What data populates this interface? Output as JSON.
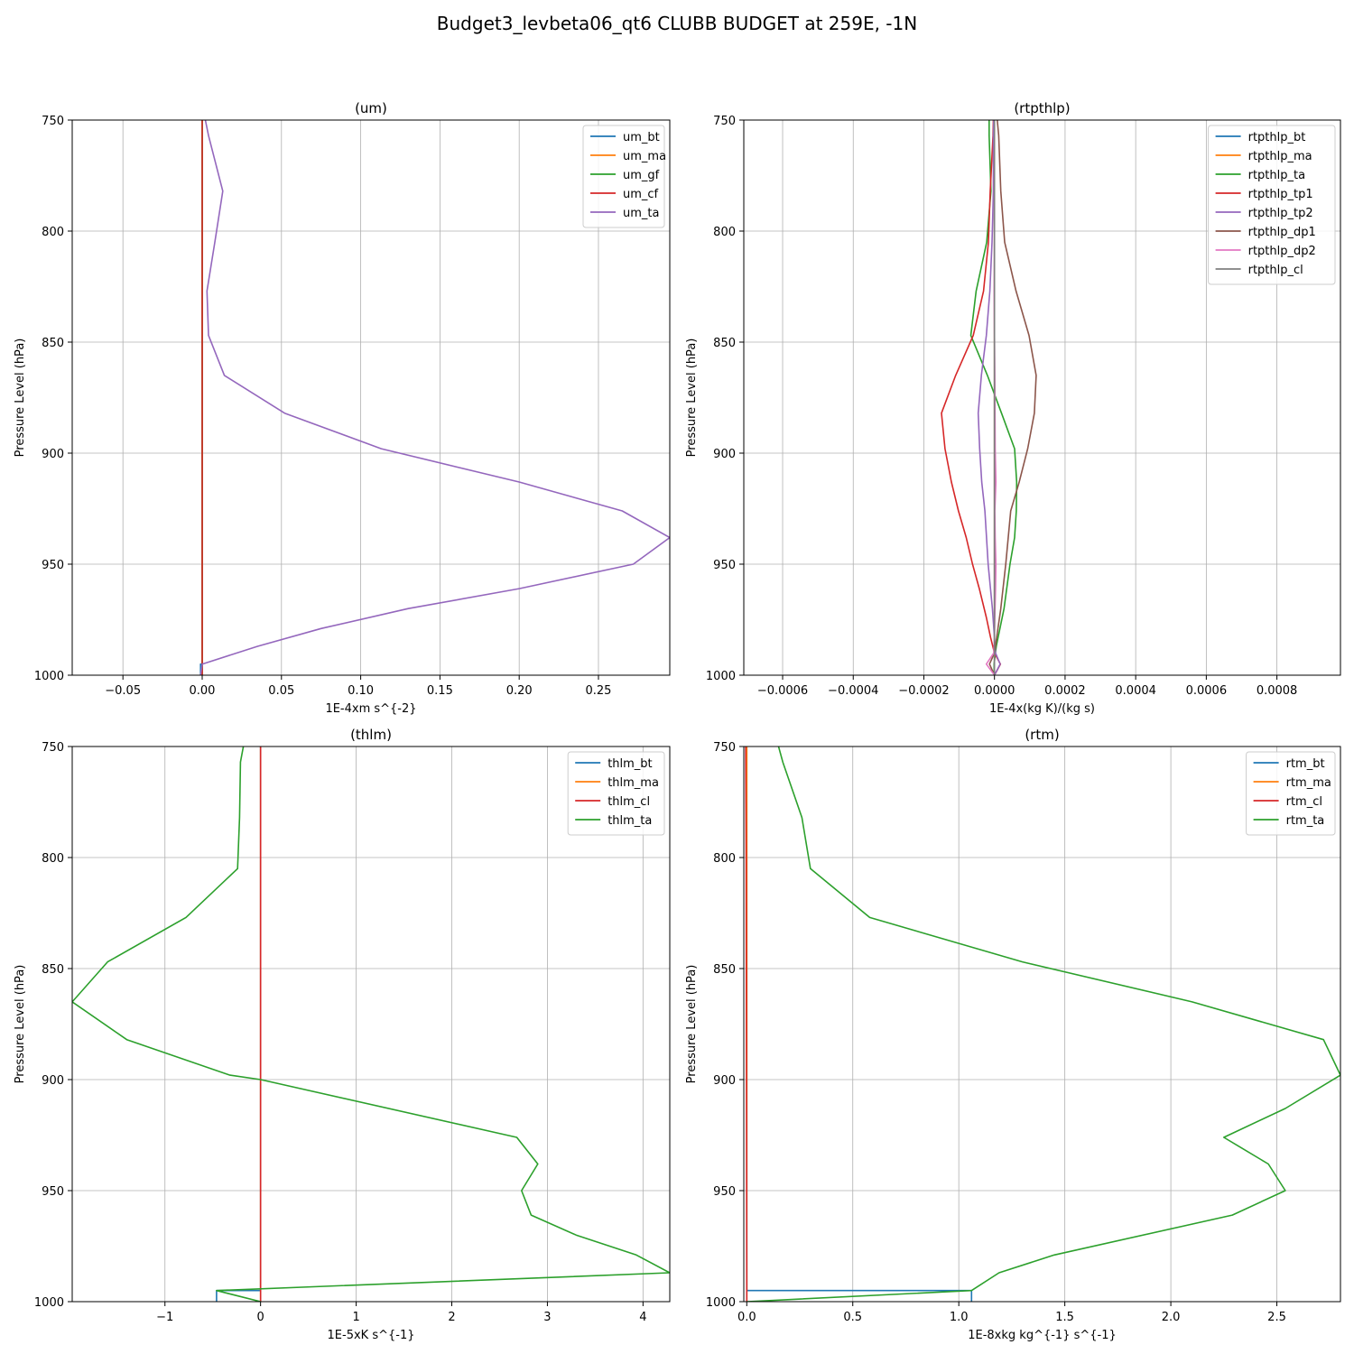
{
  "figure": {
    "title": "Budget3_levbeta06_qt6 CLUBB BUDGET at 259E, -1N"
  },
  "colors": {
    "C0": "#1f77b4",
    "C1": "#ff7f0e",
    "C2": "#2ca02c",
    "C3": "#d62728",
    "C4": "#9467bd",
    "C5": "#8c564b",
    "C6": "#e377c2",
    "C7": "#7f7f7f",
    "grid": "#b0b0b0"
  },
  "chart_data": [
    {
      "type": "line",
      "title": "(um)",
      "xlabel": "1E-4xm s^{-2}",
      "ylabel": "Pressure Level (hPa)",
      "xlim": [
        -0.082,
        0.295
      ],
      "ylim": [
        1000,
        750
      ],
      "y_inverted": true,
      "xticks": [
        -0.05,
        0.0,
        0.05,
        0.1,
        0.15,
        0.2,
        0.25
      ],
      "xtick_labels": [
        "−0.05",
        "0.00",
        "0.05",
        "0.10",
        "0.15",
        "0.20",
        "0.25"
      ],
      "yticks": [
        750,
        800,
        850,
        900,
        950,
        1000
      ],
      "ytick_labels": [
        "750",
        "800",
        "850",
        "900",
        "950",
        "1000"
      ],
      "grid": true,
      "legend_position": "top-right",
      "series": [
        {
          "name": "um_bt",
          "color": "C0",
          "points": [
            [
              0.0,
              750
            ],
            [
              0.0,
              995
            ],
            [
              -0.001,
              995
            ],
            [
              -0.001,
              1000
            ]
          ]
        },
        {
          "name": "um_ma",
          "color": "C1",
          "points": [
            [
              0.0,
              750
            ],
            [
              0.0,
              1000
            ]
          ]
        },
        {
          "name": "um_gf",
          "color": "C2",
          "points": [
            [
              0.0,
              750
            ],
            [
              0.0,
              1000
            ]
          ]
        },
        {
          "name": "um_cf",
          "color": "C3",
          "points": [
            [
              0.0,
              750
            ],
            [
              0.0,
              1000
            ]
          ]
        },
        {
          "name": "um_ta",
          "color": "C4",
          "points": [
            [
              0.002,
              750
            ],
            [
              0.004,
              757
            ],
            [
              0.013,
              782
            ],
            [
              0.008,
              805
            ],
            [
              0.003,
              827
            ],
            [
              0.004,
              847
            ],
            [
              0.014,
              865
            ],
            [
              0.052,
              882
            ],
            [
              0.113,
              898
            ],
            [
              0.2,
              913
            ],
            [
              0.265,
              926
            ],
            [
              0.295,
              938
            ],
            [
              0.272,
              950
            ],
            [
              0.2,
              961
            ],
            [
              0.13,
              970
            ],
            [
              0.075,
              979
            ],
            [
              0.035,
              987
            ],
            [
              0.0,
              995
            ],
            [
              -0.001,
              1000
            ]
          ]
        }
      ]
    },
    {
      "type": "line",
      "title": "(rtpthlp)",
      "xlabel": "1E-4x(kg K)/(kg s)",
      "ylabel": "Pressure Level (hPa)",
      "xlim": [
        -0.00071,
        0.00098
      ],
      "ylim": [
        1000,
        750
      ],
      "y_inverted": true,
      "xticks": [
        -0.0006,
        -0.0004,
        -0.0002,
        0.0,
        0.0002,
        0.0004,
        0.0006,
        0.0008
      ],
      "xtick_labels": [
        "−0.0006",
        "−0.0004",
        "−0.0002",
        "0.0000",
        "0.0002",
        "0.0004",
        "0.0006",
        "0.0008"
      ],
      "yticks": [
        750,
        800,
        850,
        900,
        950,
        1000
      ],
      "ytick_labels": [
        "750",
        "800",
        "850",
        "900",
        "950",
        "1000"
      ],
      "grid": true,
      "legend_position": "top-right",
      "series": [
        {
          "name": "rtpthlp_bt",
          "color": "C0",
          "points": [
            [
              0.0,
              750
            ],
            [
              0.0,
              1000
            ]
          ]
        },
        {
          "name": "rtpthlp_ma",
          "color": "C1",
          "points": [
            [
              0.0,
              750
            ],
            [
              0.0,
              1000
            ]
          ]
        },
        {
          "name": "rtpthlp_ta",
          "color": "C2",
          "points": [
            [
              -1.5e-05,
              750
            ],
            [
              -1.5e-05,
              757
            ],
            [
              -1e-05,
              782
            ],
            [
              -2.2e-05,
              805
            ],
            [
              -5.2e-05,
              827
            ],
            [
              -6.7e-05,
              847
            ],
            [
              -2e-05,
              865
            ],
            [
              2e-05,
              882
            ],
            [
              5.7e-05,
              898
            ],
            [
              6.3e-05,
              913
            ],
            [
              6.2e-05,
              926
            ],
            [
              5.7e-05,
              938
            ],
            [
              4.4e-05,
              950
            ],
            [
              2.7e-05,
              970
            ],
            [
              5e-06,
              987
            ],
            [
              -1e-06,
              995
            ],
            [
              -1e-06,
              1000
            ]
          ]
        },
        {
          "name": "rtpthlp_tp1",
          "color": "C3",
          "points": [
            [
              -3e-06,
              750
            ],
            [
              -4e-06,
              757
            ],
            [
              -1.2e-05,
              782
            ],
            [
              -1.7e-05,
              805
            ],
            [
              -3.1e-05,
              827
            ],
            [
              -6e-05,
              847
            ],
            [
              -0.00011,
              865
            ],
            [
              -0.00015,
              882
            ],
            [
              -0.00014,
              898
            ],
            [
              -0.000122,
              913
            ],
            [
              -0.000102,
              926
            ],
            [
              -8e-05,
              938
            ],
            [
              -6.2e-05,
              950
            ],
            [
              -4.3e-05,
              961
            ],
            [
              -2.3e-05,
              974
            ],
            [
              -1.1e-05,
              983
            ],
            [
              0.0,
              990
            ],
            [
              1.7e-05,
              995
            ],
            [
              0.0,
              1000
            ]
          ]
        },
        {
          "name": "rtpthlp_tp2",
          "color": "C4",
          "points": [
            [
              -2e-06,
              750
            ],
            [
              -3e-06,
              757
            ],
            [
              -3e-06,
              782
            ],
            [
              -7e-06,
              805
            ],
            [
              -1.3e-05,
              827
            ],
            [
              -2.3e-05,
              847
            ],
            [
              -3.7e-05,
              865
            ],
            [
              -4.6e-05,
              882
            ],
            [
              -4.2e-05,
              898
            ],
            [
              -3.6e-05,
              913
            ],
            [
              -2.7e-05,
              926
            ],
            [
              -1.8e-05,
              950
            ],
            [
              -6e-06,
              970
            ],
            [
              0.0,
              983
            ],
            [
              3e-06,
              990
            ],
            [
              1.6e-05,
              995
            ],
            [
              0.0,
              1000
            ]
          ]
        },
        {
          "name": "rtpthlp_dp1",
          "color": "C5",
          "points": [
            [
              8e-06,
              750
            ],
            [
              1.2e-05,
              757
            ],
            [
              1.8e-05,
              782
            ],
            [
              2.9e-05,
              805
            ],
            [
              6.1e-05,
              827
            ],
            [
              9.8e-05,
              847
            ],
            [
              0.000118,
              865
            ],
            [
              0.000113,
              882
            ],
            [
              9.4e-05,
              898
            ],
            [
              7e-05,
              913
            ],
            [
              4.6e-05,
              926
            ],
            [
              3.2e-05,
              950
            ],
            [
              1.8e-05,
              970
            ],
            [
              0.0,
              990
            ],
            [
              -1.4e-05,
              995
            ],
            [
              0.0,
              1000
            ]
          ]
        },
        {
          "name": "rtpthlp_dp2",
          "color": "C6",
          "points": [
            [
              0.0,
              750
            ],
            [
              0.0,
              810
            ],
            [
              -1e-06,
              827
            ],
            [
              0.0,
              847
            ],
            [
              1e-06,
              865
            ],
            [
              2e-06,
              898
            ],
            [
              4e-06,
              913
            ],
            [
              1e-06,
              926
            ],
            [
              2e-06,
              938
            ],
            [
              4e-06,
              950
            ],
            [
              3e-06,
              961
            ],
            [
              1e-06,
              974
            ],
            [
              0.0,
              983
            ],
            [
              -2e-06,
              990
            ],
            [
              -2.3e-05,
              995
            ],
            [
              0.0,
              1000
            ]
          ]
        },
        {
          "name": "rtpthlp_cl",
          "color": "C7",
          "points": [
            [
              0.0,
              750
            ],
            [
              0.0,
              1000
            ]
          ]
        }
      ]
    },
    {
      "type": "line",
      "title": "(thlm)",
      "xlabel": "1E-5xK s^{-1}",
      "ylabel": "Pressure Level (hPa)",
      "xlim": [
        -1.97,
        4.28
      ],
      "ylim": [
        1000,
        750
      ],
      "y_inverted": true,
      "xticks": [
        -1,
        0,
        1,
        2,
        3,
        4
      ],
      "xtick_labels": [
        "−1",
        "0",
        "1",
        "2",
        "3",
        "4"
      ],
      "yticks": [
        750,
        800,
        850,
        900,
        950,
        1000
      ],
      "ytick_labels": [
        "750",
        "800",
        "850",
        "900",
        "950",
        "1000"
      ],
      "grid": true,
      "legend_position": "top-right",
      "series": [
        {
          "name": "thlm_bt",
          "color": "C0",
          "points": [
            [
              0.0,
              750
            ],
            [
              0.0,
              995
            ],
            [
              -0.46,
              995
            ],
            [
              -0.46,
              1000
            ]
          ]
        },
        {
          "name": "thlm_ma",
          "color": "C1",
          "points": [
            [
              0.0,
              750
            ],
            [
              0.0,
              1000
            ]
          ]
        },
        {
          "name": "thlm_cl",
          "color": "C3",
          "points": [
            [
              0.0,
              750
            ],
            [
              0.0,
              1000
            ]
          ]
        },
        {
          "name": "thlm_ta",
          "color": "C2",
          "points": [
            [
              -0.18,
              750
            ],
            [
              -0.21,
              757
            ],
            [
              -0.22,
              782
            ],
            [
              -0.24,
              805
            ],
            [
              -0.78,
              827
            ],
            [
              -1.6,
              847
            ],
            [
              -1.97,
              865
            ],
            [
              -1.4,
              882
            ],
            [
              -0.32,
              898
            ],
            [
              0.0,
              900
            ],
            [
              2.68,
              926
            ],
            [
              2.9,
              938
            ],
            [
              2.73,
              950
            ],
            [
              2.83,
              961
            ],
            [
              3.3,
              970
            ],
            [
              3.93,
              979
            ],
            [
              4.28,
              987
            ],
            [
              -0.46,
              995
            ],
            [
              0.0,
              1000
            ]
          ]
        }
      ]
    },
    {
      "type": "line",
      "title": "(rtm)",
      "xlabel": "1E-8xkg kg^{-1} s^{-1}",
      "ylabel": "Pressure Level (hPa)",
      "xlim": [
        -0.014,
        2.8
      ],
      "ylim": [
        1000,
        750
      ],
      "y_inverted": true,
      "xticks": [
        0.0,
        0.5,
        1.0,
        1.5,
        2.0,
        2.5
      ],
      "xtick_labels": [
        "0.0",
        "0.5",
        "1.0",
        "1.5",
        "2.0",
        "2.5"
      ],
      "yticks": [
        750,
        800,
        850,
        900,
        950,
        1000
      ],
      "ytick_labels": [
        "750",
        "800",
        "850",
        "900",
        "950",
        "1000"
      ],
      "grid": true,
      "legend_position": "top-right",
      "series": [
        {
          "name": "rtm_bt",
          "color": "C0",
          "points": [
            [
              0.0,
              750
            ],
            [
              0.0,
              995
            ],
            [
              1.06,
              995
            ],
            [
              1.06,
              1000
            ]
          ]
        },
        {
          "name": "rtm_ma",
          "color": "C1",
          "points": [
            [
              0.0,
              750
            ],
            [
              0.0,
              1000
            ]
          ]
        },
        {
          "name": "rtm_cl",
          "color": "C3",
          "points": [
            [
              -0.005,
              750
            ],
            [
              -0.003,
              800
            ],
            [
              0.0,
              1000
            ]
          ]
        },
        {
          "name": "rtm_ta",
          "color": "C2",
          "points": [
            [
              0.15,
              750
            ],
            [
              0.17,
              757
            ],
            [
              0.26,
              782
            ],
            [
              0.3,
              805
            ],
            [
              0.58,
              827
            ],
            [
              1.3,
              847
            ],
            [
              2.1,
              865
            ],
            [
              2.72,
              882
            ],
            [
              2.8,
              898
            ],
            [
              2.54,
              913
            ],
            [
              2.25,
              926
            ],
            [
              2.46,
              938
            ],
            [
              2.54,
              950
            ],
            [
              2.29,
              961
            ],
            [
              1.45,
              979
            ],
            [
              1.19,
              987
            ],
            [
              1.06,
              995
            ],
            [
              0.0,
              1000
            ]
          ]
        }
      ]
    }
  ]
}
